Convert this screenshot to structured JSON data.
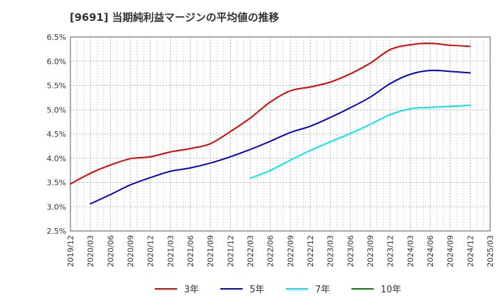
{
  "title": "[9691]  当期純利益マージンの平均値の推移",
  "chart_data": {
    "type": "line",
    "title": "[9691]  当期純利益マージンの平均値の推移",
    "x_ticks": [
      "2019/12",
      "2020/03",
      "2020/06",
      "2020/09",
      "2020/12",
      "2021/03",
      "2021/06",
      "2021/09",
      "2021/12",
      "2022/03",
      "2022/06",
      "2022/09",
      "2022/12",
      "2023/03",
      "2023/06",
      "2023/09",
      "2023/12",
      "2024/03",
      "2024/06",
      "2024/09",
      "2024/12",
      "2025/03"
    ],
    "y_ticks": [
      "2.5%",
      "3.0%",
      "3.5%",
      "4.0%",
      "4.5%",
      "5.0%",
      "5.5%",
      "6.0%",
      "6.5%"
    ],
    "ylim": [
      2.5,
      6.5
    ],
    "y_unit": "%",
    "grid": true,
    "legend_position": "bottom",
    "series": [
      {
        "name": "3年",
        "color": "#e00000",
        "x": [
          "2019/12",
          "2020/03",
          "2020/06",
          "2020/09",
          "2020/12",
          "2021/03",
          "2021/06",
          "2021/09",
          "2021/12",
          "2022/03",
          "2022/06",
          "2022/09",
          "2022/12",
          "2023/03",
          "2023/06",
          "2023/09",
          "2023/12",
          "2024/03",
          "2024/06",
          "2024/09",
          "2024/12"
        ],
        "values": [
          3.47,
          3.69,
          3.86,
          3.99,
          4.03,
          4.13,
          4.2,
          4.3,
          4.55,
          4.83,
          5.16,
          5.39,
          5.47,
          5.57,
          5.74,
          5.96,
          6.24,
          6.34,
          6.37,
          6.33,
          6.31
        ]
      },
      {
        "name": "5年",
        "color": "#0000c8",
        "x": [
          "2020/03",
          "2020/06",
          "2020/09",
          "2020/12",
          "2021/03",
          "2021/06",
          "2021/09",
          "2021/12",
          "2022/03",
          "2022/06",
          "2022/09",
          "2022/12",
          "2023/03",
          "2023/06",
          "2023/09",
          "2023/12",
          "2024/03",
          "2024/06",
          "2024/09",
          "2024/12"
        ],
        "values": [
          3.06,
          3.25,
          3.45,
          3.6,
          3.73,
          3.8,
          3.9,
          4.03,
          4.18,
          4.35,
          4.53,
          4.66,
          4.84,
          5.04,
          5.26,
          5.54,
          5.73,
          5.81,
          5.79,
          5.76
        ]
      },
      {
        "name": "7年",
        "color": "#00e8e8",
        "x": [
          "2022/03",
          "2022/06",
          "2022/09",
          "2022/12",
          "2023/03",
          "2023/06",
          "2023/09",
          "2023/12",
          "2024/03",
          "2024/06",
          "2024/09",
          "2024/12"
        ],
        "values": [
          3.59,
          3.75,
          3.96,
          4.16,
          4.34,
          4.51,
          4.7,
          4.9,
          5.02,
          5.05,
          5.07,
          5.09
        ]
      },
      {
        "name": "10年",
        "color": "#008000",
        "x": [],
        "values": []
      }
    ]
  }
}
